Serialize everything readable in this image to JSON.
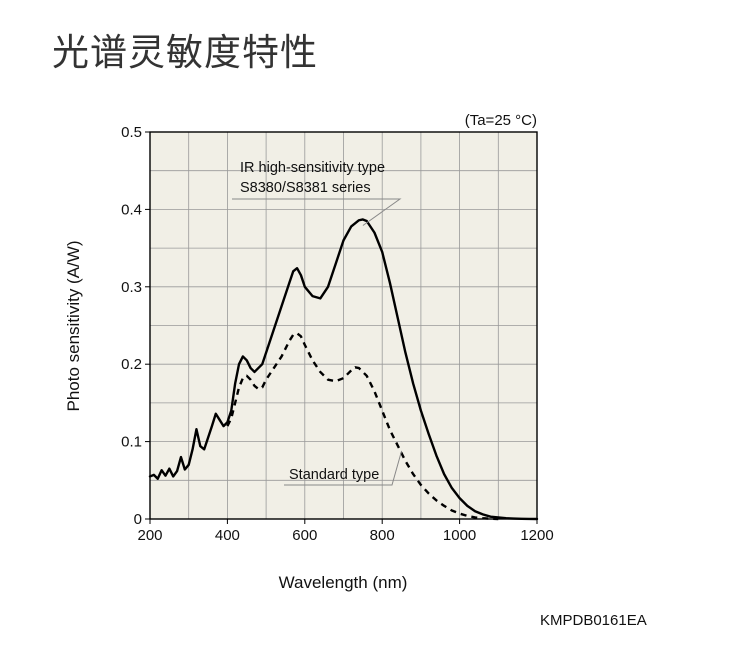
{
  "page": {
    "heading": "光谱灵敏度特性",
    "doc_code": "KMPDB0161EA"
  },
  "chart_data": {
    "type": "line",
    "condition": "(Ta=25 °C)",
    "xlabel": "Wavelength (nm)",
    "ylabel": "Photo sensitivity (A/W)",
    "xlim": [
      200,
      1200
    ],
    "ylim": [
      0,
      0.5
    ],
    "x_ticks": [
      200,
      400,
      600,
      800,
      1000,
      1200
    ],
    "y_ticks": [
      0,
      0.1,
      0.2,
      0.3,
      0.4,
      0.5
    ],
    "y_tick_labels": [
      "0",
      "0.1",
      "0.2",
      "0.3",
      "0.4",
      "0.5"
    ],
    "x_grid_step": 100,
    "y_grid_step": 0.05,
    "grid": true,
    "background": "#f1efe6",
    "annotations": [
      {
        "lines": [
          "IR high-sensitivity type",
          "S8380/S8381 series"
        ],
        "series": 0
      },
      {
        "lines": [
          "Standard type"
        ],
        "series": 1
      }
    ],
    "series": [
      {
        "name": "IR high-sensitivity type S8380/S8381 series",
        "style": "solid",
        "x": [
          200,
          210,
          220,
          230,
          240,
          250,
          260,
          270,
          280,
          290,
          300,
          310,
          320,
          330,
          340,
          350,
          360,
          370,
          380,
          390,
          400,
          410,
          420,
          430,
          440,
          450,
          460,
          470,
          480,
          490,
          500,
          520,
          540,
          560,
          570,
          580,
          590,
          600,
          620,
          640,
          660,
          680,
          700,
          720,
          740,
          750,
          760,
          780,
          800,
          820,
          840,
          860,
          880,
          900,
          920,
          940,
          960,
          980,
          1000,
          1020,
          1040,
          1060,
          1080,
          1100,
          1120,
          1140,
          1160,
          1180,
          1200
        ],
        "y": [
          0.055,
          0.057,
          0.052,
          0.063,
          0.056,
          0.065,
          0.055,
          0.062,
          0.08,
          0.064,
          0.07,
          0.09,
          0.116,
          0.094,
          0.09,
          0.105,
          0.12,
          0.136,
          0.128,
          0.12,
          0.125,
          0.14,
          0.175,
          0.2,
          0.21,
          0.205,
          0.195,
          0.19,
          0.195,
          0.2,
          0.215,
          0.245,
          0.275,
          0.305,
          0.32,
          0.324,
          0.315,
          0.3,
          0.288,
          0.285,
          0.3,
          0.33,
          0.36,
          0.378,
          0.386,
          0.387,
          0.385,
          0.37,
          0.345,
          0.305,
          0.26,
          0.215,
          0.175,
          0.14,
          0.11,
          0.082,
          0.058,
          0.04,
          0.027,
          0.017,
          0.01,
          0.006,
          0.003,
          0.002,
          0.001,
          0.0005,
          0.0002,
          0.0001,
          0
        ]
      },
      {
        "name": "Standard type",
        "style": "dashed",
        "x": [
          400,
          410,
          420,
          430,
          440,
          450,
          460,
          470,
          480,
          490,
          500,
          520,
          540,
          560,
          570,
          580,
          590,
          600,
          620,
          640,
          660,
          680,
          700,
          720,
          730,
          740,
          760,
          780,
          800,
          820,
          840,
          860,
          880,
          900,
          920,
          940,
          960,
          980,
          1000,
          1020,
          1040,
          1060,
          1080,
          1100
        ],
        "y": [
          0.12,
          0.13,
          0.15,
          0.17,
          0.182,
          0.185,
          0.18,
          0.172,
          0.168,
          0.17,
          0.18,
          0.195,
          0.21,
          0.23,
          0.238,
          0.24,
          0.236,
          0.225,
          0.205,
          0.19,
          0.18,
          0.178,
          0.182,
          0.192,
          0.196,
          0.195,
          0.185,
          0.165,
          0.14,
          0.115,
          0.095,
          0.075,
          0.058,
          0.044,
          0.033,
          0.024,
          0.017,
          0.011,
          0.007,
          0.004,
          0.002,
          0.001,
          0.0004,
          0
        ]
      }
    ]
  }
}
